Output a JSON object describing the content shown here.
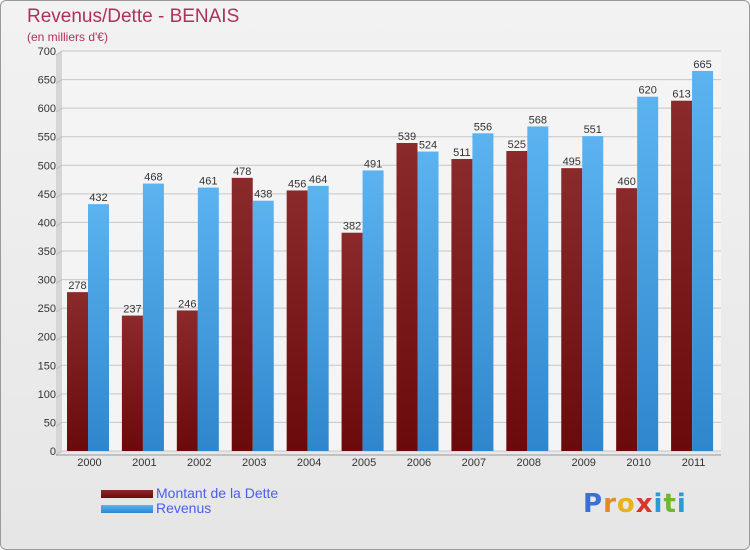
{
  "title": "Revenus/Dette - BENAIS",
  "subtitle": "(en milliers d'€)",
  "logo": {
    "letters": [
      "P",
      "r",
      "o",
      "x",
      "i",
      "t",
      "i"
    ],
    "colors": [
      "#3b6fd6",
      "#e58a1f",
      "#e8b21a",
      "#d6362b",
      "#2b9bd6",
      "#6fb82e",
      "#2b9bd6"
    ]
  },
  "colors": {
    "dette": "#6b0a0a",
    "revenus": "#4aa3e6",
    "title": "#b0305a",
    "legend_text": "#4b5cf0"
  },
  "chart_data": {
    "type": "bar",
    "title": "Revenus/Dette - BENAIS",
    "subtitle": "(en milliers d'€)",
    "categories": [
      "2000",
      "2001",
      "2002",
      "2003",
      "2004",
      "2005",
      "2006",
      "2007",
      "2008",
      "2009",
      "2010",
      "2011"
    ],
    "series": [
      {
        "name": "Montant de la Dette",
        "values": [
          278,
          237,
          246,
          478,
          456,
          382,
          539,
          511,
          525,
          495,
          460,
          613
        ]
      },
      {
        "name": "Revenus",
        "values": [
          432,
          468,
          461,
          438,
          464,
          491,
          524,
          556,
          568,
          551,
          620,
          665
        ]
      }
    ],
    "ylim": [
      0,
      700
    ],
    "yticks": [
      0,
      50,
      100,
      150,
      200,
      250,
      300,
      350,
      400,
      450,
      500,
      550,
      600,
      650,
      700
    ],
    "grid": true,
    "legend": "bottom-left"
  }
}
